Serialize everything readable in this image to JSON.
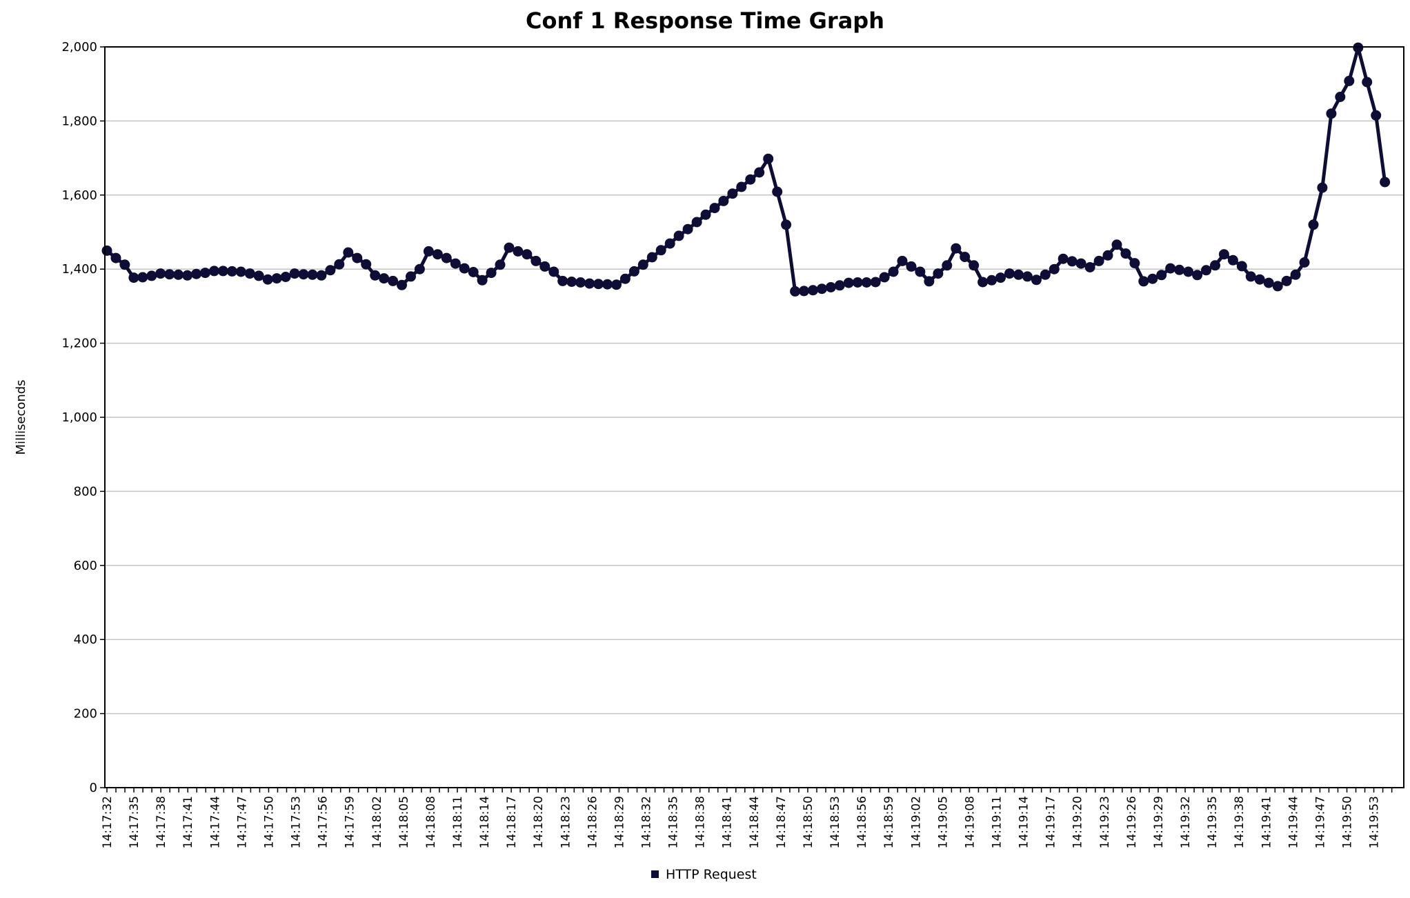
{
  "chart_data": {
    "type": "line",
    "title": "Conf 1 Response Time Graph",
    "xlabel": "",
    "ylabel": "Milliseconds",
    "ylim": [
      0,
      2000
    ],
    "yticks": [
      0,
      200,
      400,
      600,
      800,
      1000,
      1200,
      1400,
      1600,
      1800,
      2000
    ],
    "ytick_labels": [
      "0",
      "200",
      "400",
      "600",
      "800",
      "1,000",
      "1,200",
      "1,400",
      "1,600",
      "1,800",
      "2,000"
    ],
    "xlim": [
      "14:17:32",
      "14:19:55"
    ],
    "xtick_labels": [
      "14:17:32",
      "14:17:35",
      "14:17:38",
      "14:17:41",
      "14:17:44",
      "14:17:47",
      "14:17:50",
      "14:17:53",
      "14:17:56",
      "14:17:59",
      "14:18:02",
      "14:18:05",
      "14:18:08",
      "14:18:11",
      "14:18:14",
      "14:18:17",
      "14:18:20",
      "14:18:23",
      "14:18:26",
      "14:18:29",
      "14:18:32",
      "14:18:35",
      "14:18:38",
      "14:18:41",
      "14:18:44",
      "14:18:47",
      "14:18:50",
      "14:18:53",
      "14:18:56",
      "14:18:59",
      "14:19:02",
      "14:19:05",
      "14:19:08",
      "14:19:11",
      "14:19:14",
      "14:19:17",
      "14:19:20",
      "14:19:23",
      "14:19:26",
      "14:19:29",
      "14:19:32",
      "14:19:35",
      "14:19:38",
      "14:19:41",
      "14:19:44",
      "14:19:47",
      "14:19:50",
      "14:19:53"
    ],
    "grid": true,
    "legend_position": "bottom-center",
    "series": [
      {
        "name": "HTTP Request",
        "color": "#0d0d35",
        "values": [
          1450,
          1430,
          1412,
          1377,
          1378,
          1382,
          1388,
          1386,
          1385,
          1383,
          1387,
          1390,
          1395,
          1395,
          1394,
          1393,
          1388,
          1382,
          1372,
          1375,
          1379,
          1388,
          1386,
          1385,
          1383,
          1397,
          1413,
          1445,
          1430,
          1413,
          1383,
          1375,
          1368,
          1357,
          1380,
          1400,
          1448,
          1440,
          1430,
          1415,
          1402,
          1392,
          1370,
          1390,
          1412,
          1458,
          1448,
          1440,
          1422,
          1407,
          1393,
          1368,
          1366,
          1364,
          1361,
          1360,
          1359,
          1358,
          1374,
          1394,
          1412,
          1432,
          1451,
          1469,
          1490,
          1508,
          1527,
          1547,
          1565,
          1584,
          1604,
          1622,
          1642,
          1661,
          1698,
          1609,
          1520,
          1340,
          1341,
          1343,
          1347,
          1351,
          1356,
          1363,
          1364,
          1364,
          1365,
          1378,
          1393,
          1422,
          1407,
          1393,
          1367,
          1388,
          1410,
          1456,
          1433,
          1410,
          1365,
          1370,
          1377,
          1388,
          1385,
          1380,
          1371,
          1385,
          1400,
          1428,
          1421,
          1415,
          1405,
          1422,
          1437,
          1466,
          1442,
          1416,
          1367,
          1374,
          1384,
          1402,
          1398,
          1393,
          1384,
          1397,
          1410,
          1440,
          1424,
          1408,
          1380,
          1372,
          1363,
          1354,
          1368,
          1385,
          1418,
          1520,
          1620,
          1820,
          1865,
          1908,
          1998,
          1905,
          1815,
          1635
        ]
      }
    ]
  }
}
